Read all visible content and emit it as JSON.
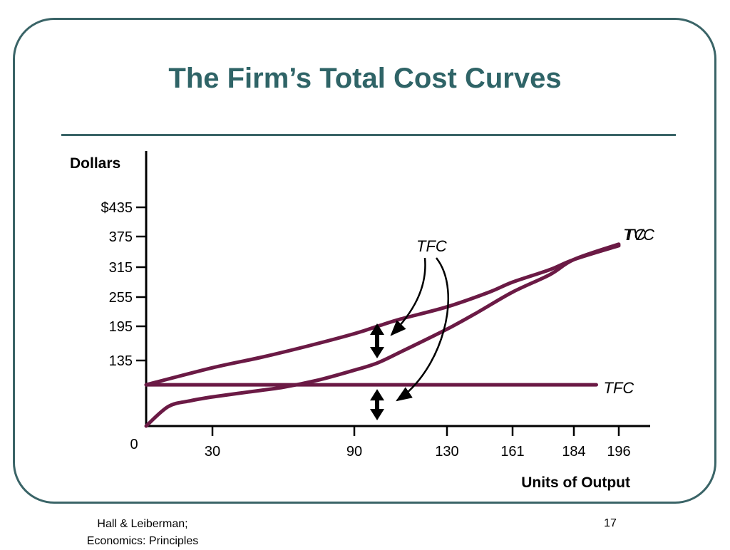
{
  "slide": {
    "title": "The Firm’s Total Cost Curves",
    "footer_line1": "Hall & Leiberman;",
    "footer_line2": "Economics:  Principles",
    "page_number": "17",
    "accent_color": "#3a6467",
    "curve_color": "#6b1a45"
  },
  "chart_data": {
    "type": "line",
    "ylabel": "Dollars",
    "xlabel": "Units of Output",
    "origin_label": "0",
    "x_ticks": [
      {
        "value": 30,
        "label": "30"
      },
      {
        "value": 90,
        "label": "90"
      },
      {
        "value": 130,
        "label": "130"
      },
      {
        "value": 161,
        "label": "161"
      },
      {
        "value": 184,
        "label": "184"
      },
      {
        "value": 196,
        "label": "196"
      }
    ],
    "y_ticks": [
      {
        "value": 435,
        "label": "$435"
      },
      {
        "value": 375,
        "label": "375"
      },
      {
        "value": 315,
        "label": "315"
      },
      {
        "value": 255,
        "label": "255"
      },
      {
        "value": 195,
        "label": "195"
      },
      {
        "value": 135,
        "label": "135"
      }
    ],
    "series": [
      {
        "name": "TC",
        "points": [
          [
            0,
            85
          ],
          [
            30,
            120
          ],
          [
            50,
            140
          ],
          [
            70,
            160
          ],
          [
            90,
            182
          ],
          [
            100,
            195
          ],
          [
            110,
            210
          ],
          [
            130,
            235
          ],
          [
            150,
            265
          ],
          [
            161,
            285
          ],
          [
            175,
            310
          ],
          [
            184,
            330
          ],
          [
            196,
            357
          ]
        ]
      },
      {
        "name": "TVC",
        "points": [
          [
            0,
            0
          ],
          [
            10,
            40
          ],
          [
            20,
            52
          ],
          [
            30,
            60
          ],
          [
            45,
            70
          ],
          [
            60,
            80
          ],
          [
            75,
            95
          ],
          [
            90,
            115
          ],
          [
            100,
            130
          ],
          [
            110,
            150
          ],
          [
            130,
            190
          ],
          [
            145,
            225
          ],
          [
            161,
            265
          ],
          [
            175,
            300
          ],
          [
            184,
            330
          ],
          [
            196,
            360
          ]
        ]
      },
      {
        "name": "TFC",
        "points": [
          [
            0,
            85
          ],
          [
            190,
            85
          ]
        ]
      }
    ],
    "annotations": [
      {
        "text": "TFC"
      }
    ]
  }
}
